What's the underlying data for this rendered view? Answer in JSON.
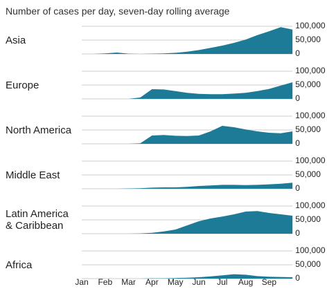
{
  "chart_data": {
    "type": "area",
    "subtitle": "Number of cases per day, seven-day rolling average",
    "categories": [
      "Jan",
      null,
      "Feb",
      null,
      "Mar",
      null,
      "Apr",
      null,
      "May",
      null,
      "Jun",
      null,
      "Jul",
      null,
      "Aug",
      null,
      "Sep",
      null,
      null
    ],
    "ylim": [
      0,
      100000
    ],
    "yticks": [
      0,
      {
        "value": 50000,
        "label": "50,000"
      },
      {
        "value": 100000,
        "label": "100,000"
      }
    ],
    "grid": true,
    "color": "#1d7b97",
    "series": [
      {
        "name": "Asia",
        "values": [
          0,
          0,
          2000,
          5000,
          1000,
          0,
          1000,
          2000,
          4000,
          8000,
          14000,
          22000,
          30000,
          40000,
          52000,
          68000,
          82000,
          97000,
          88000
        ]
      },
      {
        "name": "Europe",
        "values": [
          0,
          0,
          0,
          0,
          0,
          5000,
          35000,
          34000,
          28000,
          22000,
          18000,
          17000,
          17000,
          19000,
          22000,
          28000,
          36000,
          48000,
          60000
        ]
      },
      {
        "name": "North America",
        "values": [
          0,
          0,
          0,
          0,
          0,
          2000,
          30000,
          32000,
          29000,
          28000,
          30000,
          45000,
          65000,
          60000,
          52000,
          45000,
          40000,
          38000,
          45000
        ]
      },
      {
        "name": "Middle East",
        "values": [
          0,
          0,
          0,
          0,
          1000,
          2000,
          4000,
          5000,
          5000,
          7000,
          10000,
          12000,
          14000,
          14000,
          13000,
          14000,
          16000,
          18000,
          22000
        ]
      },
      {
        "name": "Latin America & Caribbean",
        "values": [
          0,
          0,
          0,
          0,
          0,
          1000,
          3000,
          8000,
          15000,
          30000,
          45000,
          55000,
          62000,
          70000,
          80000,
          82000,
          75000,
          70000,
          65000
        ]
      },
      {
        "name": "Africa",
        "values": [
          0,
          0,
          0,
          0,
          0,
          0,
          1000,
          1000,
          2000,
          3000,
          5000,
          8000,
          12000,
          16000,
          14000,
          9000,
          7000,
          6000,
          5000
        ]
      }
    ]
  }
}
